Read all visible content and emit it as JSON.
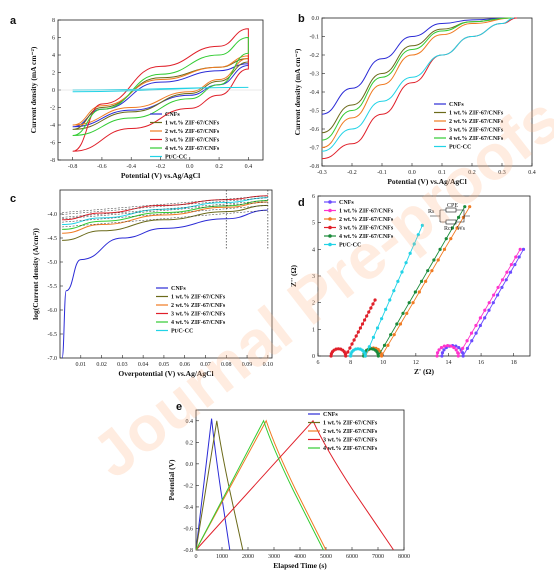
{
  "watermark": "Journal Pre-proofs",
  "colors": {
    "CNFs": "#2b2bd6",
    "ZIF1": "#6b6a1a",
    "ZIF2": "#f07a22",
    "ZIF3": "#e0202a",
    "ZIF4": "#33cc33",
    "PtC": "#22d3e6",
    "nyq1": "#6a4bff",
    "nyq2": "#ff33cc",
    "nyq3": "#f07a22",
    "nyq4": "#e0202a",
    "nyq5": "#1a8a3a",
    "nyq6": "#22d3e6"
  },
  "chart_data": [
    {
      "panel": "a",
      "type": "line",
      "xlabel": "Potential (V) vs.Ag/AgCl",
      "ylabel": "Current density (mA cm⁻²)",
      "xlim": [
        -0.9,
        0.5
      ],
      "ylim": [
        -8,
        8
      ],
      "xticks": [
        "-0.8",
        "-0.6",
        "-0.4",
        "-0.2",
        "0.0",
        "0.2",
        "0.4"
      ],
      "yticks": [
        "-8",
        "-6",
        "-4",
        "-2",
        "0",
        "2",
        "4",
        "6",
        "8"
      ],
      "legend": [
        "CNFs",
        "1 wt.% ZIF-67/CNFs",
        "2 wt.% ZIF-67/CNFs",
        "3 wt.% ZIF-67/CNFs",
        "4 wt.% ZIF-67/CNFs",
        "Pt/C-CC"
      ],
      "series": [
        {
          "name": "CNFs",
          "up": [
            [
              -0.8,
              -4.2
            ],
            [
              -0.4,
              -2.3
            ],
            [
              0,
              -0.6
            ],
            [
              0.2,
              0.6
            ],
            [
              0.4,
              2.8
            ]
          ],
          "down": [
            [
              0.4,
              3.0
            ],
            [
              0.2,
              2.2
            ],
            [
              -0.2,
              0.9
            ],
            [
              -0.6,
              -2.2
            ],
            [
              -0.8,
              -4.2
            ]
          ]
        },
        {
          "name": "1 wt.% ZIF-67/CNFs",
          "up": [
            [
              -0.8,
              -4.5
            ],
            [
              -0.4,
              -2.5
            ],
            [
              0,
              -0.4
            ],
            [
              0.2,
              1.0
            ],
            [
              0.4,
              3.2
            ]
          ],
          "down": [
            [
              0.4,
              3.6
            ],
            [
              0.2,
              2.6
            ],
            [
              -0.2,
              1.4
            ],
            [
              -0.6,
              -2.0
            ],
            [
              -0.8,
              -4.5
            ]
          ]
        },
        {
          "name": "2 wt.% ZIF-67/CNFs",
          "up": [
            [
              -0.8,
              -4.0
            ],
            [
              -0.4,
              -2.0
            ],
            [
              0,
              -0.2
            ],
            [
              0.2,
              1.2
            ],
            [
              0.4,
              3.6
            ]
          ],
          "down": [
            [
              0.4,
              3.9
            ],
            [
              0.2,
              2.6
            ],
            [
              -0.2,
              1.2
            ],
            [
              -0.6,
              -1.8
            ],
            [
              -0.8,
              -4.0
            ]
          ]
        },
        {
          "name": "3 wt.% ZIF-67/CNFs",
          "up": [
            [
              -0.8,
              -7.0
            ],
            [
              -0.4,
              -4.4
            ],
            [
              0,
              -2.1
            ],
            [
              0.2,
              -0.6
            ],
            [
              0.4,
              2.4
            ]
          ],
          "down": [
            [
              0.4,
              7.0
            ],
            [
              0.2,
              5.0
            ],
            [
              -0.2,
              2.7
            ],
            [
              -0.6,
              -1.6
            ],
            [
              -0.8,
              -7.0
            ]
          ]
        },
        {
          "name": "4 wt.% ZIF-67/CNFs",
          "up": [
            [
              -0.8,
              -5.2
            ],
            [
              -0.4,
              -3.2
            ],
            [
              0,
              -1.0
            ],
            [
              0.2,
              0.6
            ],
            [
              0.4,
              4.2
            ]
          ],
          "down": [
            [
              0.4,
              6.0
            ],
            [
              0.2,
              4.0
            ],
            [
              -0.2,
              1.8
            ],
            [
              -0.6,
              -2.2
            ],
            [
              -0.8,
              -5.2
            ]
          ]
        },
        {
          "name": "Pt/C-CC",
          "up": [
            [
              -0.8,
              -0.2
            ],
            [
              0.4,
              0.3
            ]
          ],
          "down": [
            [
              0.4,
              0.3
            ],
            [
              -0.8,
              0.0
            ]
          ]
        }
      ]
    },
    {
      "panel": "b",
      "type": "line",
      "xlabel": "Potential (V) vs.Ag/AgCl",
      "ylabel": "Current density (mA cm⁻²)",
      "xlim": [
        -0.3,
        0.4
      ],
      "ylim": [
        -0.8,
        0.0
      ],
      "xticks": [
        "-0.3",
        "-0.2",
        "-0.1",
        "0.0",
        "0.1",
        "0.2",
        "0.3",
        "0.4"
      ],
      "yticks": [
        "0.0",
        "-0.1",
        "-0.2",
        "-0.3",
        "-0.4",
        "-0.5",
        "-0.6",
        "-0.7",
        "-0.8"
      ],
      "legend": [
        "CNFs",
        "1 wt.% ZIF-67/CNFs",
        "2 wt.% ZIF-67/CNFs",
        "3 wt.% ZIF-67/CNFs",
        "4 wt.% ZIF-67/CNFs",
        "Pt/C-CC"
      ],
      "series": [
        {
          "name": "CNFs",
          "points": [
            [
              -0.3,
              -0.52
            ],
            [
              -0.2,
              -0.38
            ],
            [
              -0.1,
              -0.22
            ],
            [
              0.0,
              -0.1
            ],
            [
              0.1,
              -0.03
            ],
            [
              0.2,
              -0.01
            ],
            [
              0.33,
              0.0
            ]
          ]
        },
        {
          "name": "1 wt.% ZIF-67/CNFs",
          "points": [
            [
              -0.3,
              -0.62
            ],
            [
              -0.2,
              -0.47
            ],
            [
              -0.1,
              -0.3
            ],
            [
              0.0,
              -0.15
            ],
            [
              0.1,
              -0.06
            ],
            [
              0.2,
              -0.02
            ],
            [
              0.33,
              0.0
            ]
          ]
        },
        {
          "name": "2 wt.% ZIF-67/CNFs",
          "points": [
            [
              -0.3,
              -0.7
            ],
            [
              -0.2,
              -0.54
            ],
            [
              -0.1,
              -0.36
            ],
            [
              0.0,
              -0.2
            ],
            [
              0.1,
              -0.09
            ],
            [
              0.2,
              -0.03
            ],
            [
              0.34,
              0.0
            ]
          ]
        },
        {
          "name": "3 wt.% ZIF-67/CNFs",
          "points": [
            [
              -0.3,
              -0.76
            ],
            [
              -0.2,
              -0.68
            ],
            [
              -0.1,
              -0.52
            ],
            [
              0.0,
              -0.35
            ],
            [
              0.1,
              -0.2
            ],
            [
              0.2,
              -0.1
            ],
            [
              0.3,
              -0.03
            ],
            [
              0.35,
              0.0
            ]
          ]
        },
        {
          "name": "4 wt.% ZIF-67/CNFs",
          "points": [
            [
              -0.3,
              -0.66
            ],
            [
              -0.2,
              -0.5
            ],
            [
              -0.1,
              -0.32
            ],
            [
              0.0,
              -0.17
            ],
            [
              0.1,
              -0.07
            ],
            [
              0.2,
              -0.02
            ],
            [
              0.33,
              0.0
            ]
          ]
        },
        {
          "name": "Pt/C-CC",
          "points": [
            [
              -0.3,
              -0.72
            ],
            [
              -0.2,
              -0.6
            ],
            [
              -0.1,
              -0.45
            ],
            [
              0.0,
              -0.32
            ],
            [
              0.1,
              -0.2
            ],
            [
              0.2,
              -0.1
            ],
            [
              0.3,
              -0.03
            ],
            [
              0.34,
              0.0
            ]
          ]
        }
      ]
    },
    {
      "panel": "c",
      "type": "line",
      "xlabel": "Overpotential (V) vs.Ag/AgCl",
      "ylabel": "log(Current density (A/cm²))",
      "xlim": [
        0.0,
        0.102
      ],
      "ylim": [
        -7.0,
        -3.5
      ],
      "xticks": [
        "0.01",
        "0.02",
        "0.03",
        "0.04",
        "0.05",
        "0.06",
        "0.07",
        "0.08",
        "0.09",
        "0.10"
      ],
      "yticks": [
        "-4.0",
        "-4.5",
        "-5.0",
        "-5.5",
        "-6.0",
        "-6.5",
        "-7.0"
      ],
      "legend": [
        "CNFs",
        "1 wt.% ZIF-67/CNFs",
        "2 wt.% ZIF-67/CNFs",
        "3 wt.% ZIF-67/CNFs",
        "4 wt.% ZIF-67/CNFs",
        "Pt/C-CC"
      ],
      "series": [
        {
          "name": "CNFs",
          "points": [
            [
              0.001,
              -7.0
            ],
            [
              0.003,
              -5.6
            ],
            [
              0.01,
              -4.95
            ],
            [
              0.03,
              -4.5
            ],
            [
              0.05,
              -4.3
            ],
            [
              0.08,
              -4.1
            ],
            [
              0.1,
              -3.92
            ]
          ]
        },
        {
          "name": "1 wt.% ZIF-67/CNFs",
          "points": [
            [
              0.001,
              -4.55
            ],
            [
              0.02,
              -4.35
            ],
            [
              0.05,
              -4.12
            ],
            [
              0.08,
              -3.95
            ],
            [
              0.1,
              -3.82
            ]
          ]
        },
        {
          "name": "2 wt.% ZIF-67/CNFs",
          "points": [
            [
              0.001,
              -4.4
            ],
            [
              0.02,
              -4.22
            ],
            [
              0.05,
              -4.02
            ],
            [
              0.08,
              -3.86
            ],
            [
              0.1,
              -3.75
            ]
          ]
        },
        {
          "name": "3 wt.% ZIF-67/CNFs",
          "points": [
            [
              0.001,
              -4.12
            ],
            [
              0.02,
              -3.98
            ],
            [
              0.05,
              -3.82
            ],
            [
              0.08,
              -3.7
            ],
            [
              0.1,
              -3.62
            ]
          ]
        },
        {
          "name": "4 wt.% ZIF-67/CNFs",
          "points": [
            [
              0.001,
              -4.32
            ],
            [
              0.02,
              -4.15
            ],
            [
              0.05,
              -3.97
            ],
            [
              0.08,
              -3.83
            ],
            [
              0.1,
              -3.72
            ]
          ]
        },
        {
          "name": "Pt/C-CC",
          "points": [
            [
              0.001,
              -4.22
            ],
            [
              0.02,
              -4.08
            ],
            [
              0.05,
              -3.9
            ],
            [
              0.08,
              -3.76
            ],
            [
              0.1,
              -3.66
            ]
          ]
        }
      ]
    },
    {
      "panel": "d",
      "type": "scatter",
      "xlabel": "Z' (Ω)",
      "ylabel": "Z'' (Ω)",
      "xlim": [
        6,
        19
      ],
      "ylim": [
        0,
        6
      ],
      "xticks": [
        "6",
        "8",
        "10",
        "12",
        "14",
        "16",
        "18"
      ],
      "yticks": [
        "0",
        "1",
        "2",
        "3",
        "4",
        "5",
        "6"
      ],
      "legend": [
        "CNFs",
        "1 wt.% ZIF-67/CNFs",
        "2 wt.% ZIF-67/CNFs",
        "3 wt.% ZIF-67/CNFs",
        "4 wt.% ZIF-67/CNFs",
        "Pt/C-CC"
      ],
      "circuit_labels": [
        "CPE",
        "Rs",
        "Rct",
        "Ws"
      ],
      "series": [
        {
          "name": "CNFs",
          "semicircle": [
            13.6,
            14.9
          ],
          "tail_end": [
            18.6,
            4.0
          ]
        },
        {
          "name": "1 wt.% ZIF-67/CNFs",
          "semicircle": [
            13.3,
            14.6
          ],
          "tail_end": [
            18.4,
            4.0
          ]
        },
        {
          "name": "2 wt.% ZIF-67/CNFs",
          "semicircle": [
            8.9,
            9.9
          ],
          "tail_end": [
            15.3,
            5.6
          ]
        },
        {
          "name": "3 wt.% ZIF-67/CNFs",
          "semicircle": [
            6.8,
            7.7
          ],
          "tail_end": [
            9.5,
            2.1
          ]
        },
        {
          "name": "4 wt.% ZIF-67/CNFs",
          "semicircle": [
            8.8,
            9.7
          ],
          "tail_end": [
            15.0,
            5.6
          ]
        },
        {
          "name": "Pt/C-CC",
          "semicircle": [
            8.0,
            8.9
          ],
          "tail_end": [
            12.4,
            4.9
          ]
        }
      ]
    },
    {
      "panel": "e",
      "type": "line",
      "xlabel": "Elapsed Time (s)",
      "ylabel": "Potential (V)",
      "xlim": [
        0,
        8000
      ],
      "ylim": [
        -0.8,
        0.5
      ],
      "xticks": [
        "0",
        "1000",
        "2000",
        "3000",
        "4000",
        "5000",
        "6000",
        "7000",
        "8000"
      ],
      "yticks": [
        "0.4",
        "0.2",
        "0.0",
        "-0.2",
        "-0.4",
        "-0.6",
        "-0.8"
      ],
      "legend": [
        "CNFs",
        "1 wt.% ZIF-67/CNFs",
        "2 wt.% ZIF-67/CNFs",
        "3 wt.% ZIF-67/CNFs",
        "4 wt.% ZIF-67/CNFs"
      ],
      "series": [
        {
          "name": "CNFs",
          "points": [
            [
              0,
              -0.8
            ],
            [
              600,
              0.42
            ],
            [
              1300,
              -0.8
            ]
          ]
        },
        {
          "name": "1 wt.% ZIF-67/CNFs",
          "points": [
            [
              0,
              -0.8
            ],
            [
              800,
              0.4
            ],
            [
              1800,
              -0.8
            ]
          ]
        },
        {
          "name": "2 wt.% ZIF-67/CNFs",
          "points": [
            [
              0,
              -0.8
            ],
            [
              2700,
              0.4
            ],
            [
              5000,
              -0.8
            ]
          ]
        },
        {
          "name": "3 wt.% ZIF-67/CNFs",
          "points": [
            [
              0,
              -0.8
            ],
            [
              4500,
              0.4
            ],
            [
              7600,
              -0.8
            ]
          ]
        },
        {
          "name": "4 wt.% ZIF-67/CNFs",
          "points": [
            [
              0,
              -0.8
            ],
            [
              2600,
              0.4
            ],
            [
              4900,
              -0.8
            ]
          ]
        }
      ]
    }
  ]
}
